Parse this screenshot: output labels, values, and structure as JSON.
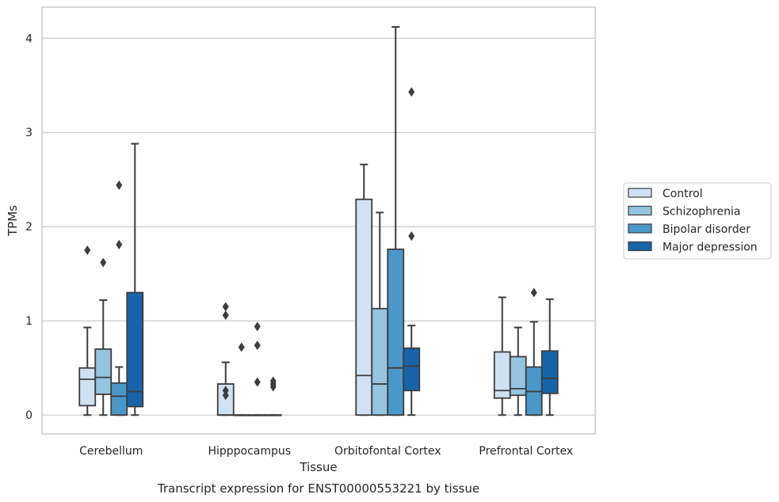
{
  "chart_data": {
    "type": "box",
    "title": "",
    "caption": "Transcript expression for ENST00000553221 by tissue",
    "xlabel": "Tissue",
    "ylabel": "TPMs",
    "ylim": [
      -0.2,
      4.33
    ],
    "yticks": [
      0,
      1,
      2,
      3,
      4
    ],
    "grid": "horizontal",
    "legend_position": "right",
    "categories": [
      "Cerebellum",
      "Hipppocampus",
      "Orbitofontal Cortex",
      "Prefrontal Cortex"
    ],
    "series": [
      {
        "name": "Control",
        "color": "#d0e1f2",
        "boxes": [
          {
            "q1": 0.1,
            "median": 0.38,
            "q3": 0.5,
            "whisker_low": 0.0,
            "whisker_high": 0.93,
            "outliers": [
              1.75
            ]
          },
          {
            "q1": 0.0,
            "median": 0.0,
            "q3": 0.33,
            "whisker_low": 0.0,
            "whisker_high": 0.56,
            "outliers": [
              1.15,
              1.06,
              0.26,
              0.21
            ]
          },
          {
            "q1": 0.0,
            "median": 0.42,
            "q3": 2.29,
            "whisker_low": 0.0,
            "whisker_high": 2.66,
            "outliers": []
          },
          {
            "q1": 0.18,
            "median": 0.26,
            "q3": 0.67,
            "whisker_low": 0.0,
            "whisker_high": 1.25,
            "outliers": []
          }
        ]
      },
      {
        "name": "Schizophrenia",
        "color": "#94c4df",
        "boxes": [
          {
            "q1": 0.22,
            "median": 0.4,
            "q3": 0.7,
            "whisker_low": 0.0,
            "whisker_high": 1.22,
            "outliers": [
              1.62
            ]
          },
          {
            "q1": 0.0,
            "median": 0.0,
            "q3": 0.0,
            "whisker_low": 0.0,
            "whisker_high": 0.0,
            "outliers": [
              0.72
            ]
          },
          {
            "q1": 0.0,
            "median": 0.33,
            "q3": 1.13,
            "whisker_low": 0.0,
            "whisker_high": 2.15,
            "outliers": []
          },
          {
            "q1": 0.21,
            "median": 0.28,
            "q3": 0.62,
            "whisker_low": 0.0,
            "whisker_high": 0.93,
            "outliers": []
          }
        ]
      },
      {
        "name": "Bipolar disorder",
        "color": "#4a98c9",
        "boxes": [
          {
            "q1": 0.0,
            "median": 0.2,
            "q3": 0.34,
            "whisker_low": 0.0,
            "whisker_high": 0.51,
            "outliers": [
              2.44,
              1.81
            ]
          },
          {
            "q1": 0.0,
            "median": 0.0,
            "q3": 0.0,
            "whisker_low": 0.0,
            "whisker_high": 0.0,
            "outliers": [
              0.94,
              0.74,
              0.35
            ]
          },
          {
            "q1": 0.0,
            "median": 0.5,
            "q3": 1.76,
            "whisker_low": 0.0,
            "whisker_high": 4.12,
            "outliers": []
          },
          {
            "q1": 0.0,
            "median": 0.25,
            "q3": 0.51,
            "whisker_low": 0.0,
            "whisker_high": 0.99,
            "outliers": [
              1.3
            ]
          }
        ]
      },
      {
        "name": "Major depression",
        "color": "#1764ab",
        "boxes": [
          {
            "q1": 0.09,
            "median": 0.25,
            "q3": 1.3,
            "whisker_low": 0.0,
            "whisker_high": 2.88,
            "outliers": []
          },
          {
            "q1": 0.0,
            "median": 0.0,
            "q3": 0.0,
            "whisker_low": 0.0,
            "whisker_high": 0.0,
            "outliers": [
              0.36,
              0.33,
              0.3
            ]
          },
          {
            "q1": 0.26,
            "median": 0.52,
            "q3": 0.71,
            "whisker_low": 0.0,
            "whisker_high": 0.95,
            "outliers": [
              3.43,
              1.9
            ]
          },
          {
            "q1": 0.23,
            "median": 0.39,
            "q3": 0.68,
            "whisker_low": 0.0,
            "whisker_high": 1.23,
            "outliers": []
          }
        ]
      }
    ]
  }
}
